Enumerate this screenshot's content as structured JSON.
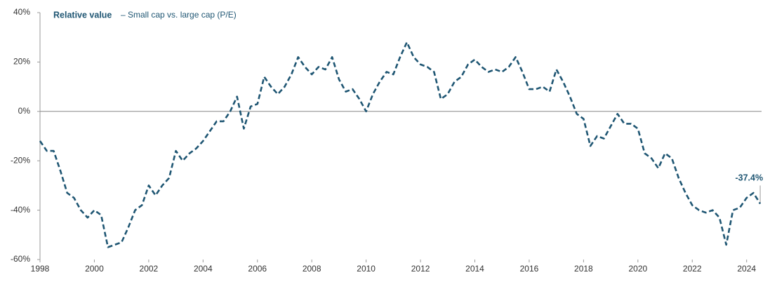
{
  "chart_data": {
    "type": "line",
    "title": "Relative value",
    "subtitle": "– Small cap vs. large cap (P/E)",
    "x": [
      1998,
      1998.25,
      1998.5,
      1998.75,
      1999,
      1999.25,
      1999.5,
      1999.75,
      2000,
      2000.25,
      2000.5,
      2000.75,
      2001,
      2001.25,
      2001.5,
      2001.75,
      2002,
      2002.25,
      2002.5,
      2002.75,
      2003,
      2003.25,
      2003.5,
      2003.75,
      2004,
      2004.25,
      2004.5,
      2004.75,
      2005,
      2005.25,
      2005.5,
      2005.75,
      2006,
      2006.25,
      2006.5,
      2006.75,
      2007,
      2007.25,
      2007.5,
      2007.75,
      2008,
      2008.25,
      2008.5,
      2008.75,
      2009,
      2009.25,
      2009.5,
      2009.75,
      2010,
      2010.25,
      2010.5,
      2010.75,
      2011,
      2011.25,
      2011.5,
      2011.75,
      2012,
      2012.25,
      2012.5,
      2012.75,
      2013,
      2013.25,
      2013.5,
      2013.75,
      2014,
      2014.25,
      2014.5,
      2014.75,
      2015,
      2015.25,
      2015.5,
      2015.75,
      2016,
      2016.25,
      2016.5,
      2016.75,
      2017,
      2017.25,
      2017.5,
      2017.75,
      2018,
      2018.25,
      2018.5,
      2018.75,
      2019,
      2019.25,
      2019.5,
      2019.75,
      2020,
      2020.25,
      2020.5,
      2020.75,
      2021,
      2021.25,
      2021.5,
      2021.75,
      2022,
      2022.25,
      2022.5,
      2022.75,
      2023,
      2023.25,
      2023.5,
      2023.75,
      2024,
      2024.25,
      2024.5
    ],
    "series": [
      {
        "name": "Relative value",
        "color": "#1f5673",
        "values": [
          -12,
          -16,
          -16,
          -24,
          -33,
          -35,
          -40,
          -43,
          -40,
          -42,
          -55,
          -54,
          -53,
          -47,
          -40,
          -38,
          -30,
          -34,
          -30,
          -27,
          -16,
          -20,
          -17,
          -15,
          -12,
          -8,
          -4,
          -4,
          0,
          6,
          -7,
          2,
          3,
          14,
          10,
          7,
          10,
          15,
          22,
          18,
          15,
          18,
          17,
          22,
          13,
          8,
          9,
          5,
          0,
          7,
          12,
          16,
          15,
          22,
          28,
          22,
          19,
          18,
          16,
          5,
          7,
          12,
          14,
          19,
          21,
          18,
          16,
          17,
          16,
          18,
          22,
          16,
          9,
          9,
          10,
          8,
          17,
          12,
          6,
          -1,
          -3,
          -14,
          -10,
          -11,
          -6,
          -1,
          -5,
          -5,
          -7,
          -17,
          -19,
          -23,
          -17,
          -19,
          -27,
          -33,
          -38,
          -40,
          -41,
          -40,
          -43,
          -54,
          -40,
          -39,
          -35,
          -33,
          -37.4
        ]
      }
    ],
    "annotations": [
      {
        "x": 2024.5,
        "y": -37.4,
        "label": "-37.4%"
      }
    ],
    "xlim": [
      1998,
      2024.55
    ],
    "xticks": [
      1998,
      2000,
      2002,
      2004,
      2006,
      2008,
      2010,
      2012,
      2014,
      2016,
      2018,
      2020,
      2022,
      2024
    ],
    "ylim": [
      -60,
      40
    ],
    "yticks": [
      {
        "value": -60,
        "label": "-60%"
      },
      {
        "value": -40,
        "label": "-40%"
      },
      {
        "value": -20,
        "label": "-20%"
      },
      {
        "value": 0,
        "label": "0%"
      },
      {
        "value": 20,
        "label": "20%"
      },
      {
        "value": 40,
        "label": "40%"
      }
    ],
    "dashed": true
  }
}
